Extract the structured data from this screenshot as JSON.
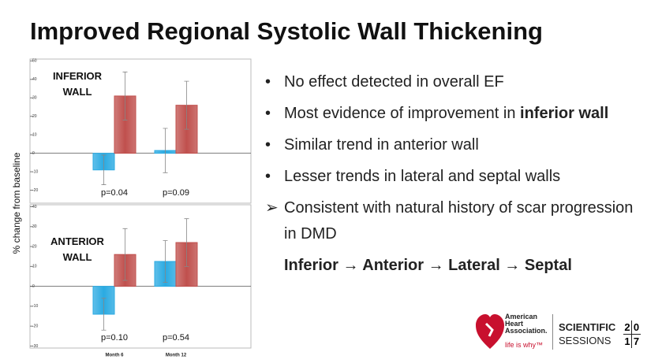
{
  "title": "Improved Regional Systolic Wall Thickening",
  "chart_data": [
    {
      "type": "bar",
      "label_lines": [
        "INFERIOR",
        "WALL"
      ],
      "ylabel": "% change from baseline",
      "categories": [
        null,
        null
      ],
      "p_values": [
        "p=0.04",
        "p=0.09"
      ],
      "series": [
        {
          "color": "#2aaae2",
          "values": [
            -9,
            1.5
          ],
          "errors": [
            8,
            12
          ]
        },
        {
          "color": "#c0504d",
          "values": [
            31,
            26
          ],
          "errors": [
            13,
            13
          ]
        }
      ],
      "ylim": [
        -27,
        51
      ],
      "yticks": [
        50,
        40,
        30,
        20,
        10,
        0,
        -10,
        -20
      ]
    },
    {
      "type": "bar",
      "label_lines": [
        "ANTERIOR",
        "WALL"
      ],
      "categories": [
        "Month 6",
        "Month 12"
      ],
      "p_values": [
        "p=0.10",
        "p=0.54"
      ],
      "series": [
        {
          "color": "#2aaae2",
          "values": [
            -14,
            12.5
          ],
          "errors": [
            8,
            10.5
          ]
        },
        {
          "color": "#c0504d",
          "values": [
            16,
            22
          ],
          "errors": [
            13,
            12
          ]
        }
      ],
      "ylim": [
        -31,
        41
      ],
      "yticks": [
        40,
        30,
        20,
        10,
        0,
        -10,
        -20,
        -30
      ]
    }
  ],
  "bullets": [
    [
      {
        "text": "No effect detected in overall EF"
      }
    ],
    [
      {
        "text": "Most evidence of improvement in "
      },
      {
        "text": "inferior wall",
        "bold": true
      }
    ],
    [
      {
        "text": "Similar trend in anterior wall"
      }
    ],
    [
      {
        "text": "Lesser trends in lateral and septal walls"
      }
    ]
  ],
  "arrow_item": "Consistent with natural history of scar progression in DMD",
  "sequence": "Inferior → Anterior → Lateral → Septal",
  "logo": {
    "org_lines": [
      "American",
      "Heart",
      "Association."
    ],
    "tagline": "life is why™",
    "event_lines": [
      "SCIENTIFIC",
      "SESSIONS"
    ],
    "year_digits": [
      "2",
      "0",
      "1",
      "7"
    ]
  }
}
